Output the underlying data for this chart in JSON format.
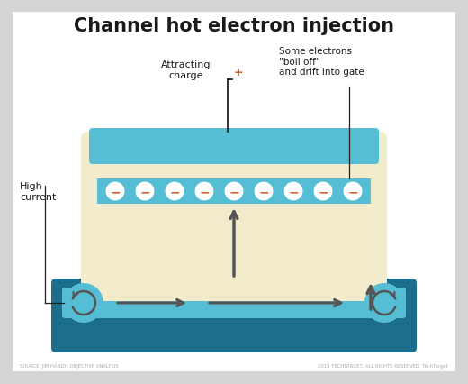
{
  "title": "Channel hot electron injection",
  "bg_outer": "#d5d5d5",
  "bg_inner": "#ffffff",
  "teal_dark": "#1c6e8c",
  "teal_light": "#55bdd4",
  "teal_lighter": "#72cfe0",
  "cream": "#f2eccc",
  "arrow_color": "#555555",
  "electron_fill": "#ffffff",
  "electron_border": "#55bdd4",
  "electron_minus": "#d4632a",
  "plus_color": "#d4632a",
  "text_dark": "#1a1a1a",
  "text_gray": "#aaaaaa",
  "line_dark": "#222222",
  "source_text": "SOURCE: JIM HANDY, OBJECTIVE ANALYSIS",
  "copyright_text": "2019 TECHTARGET, ALL RIGHTS RESERVED  TechTarget",
  "label_attracting": "Attracting\ncharge",
  "label_boiloff": "Some electrons\n\"boil off\"\nand drift into gate",
  "label_high_current": "High\ncurrent",
  "n_electrons": 9
}
